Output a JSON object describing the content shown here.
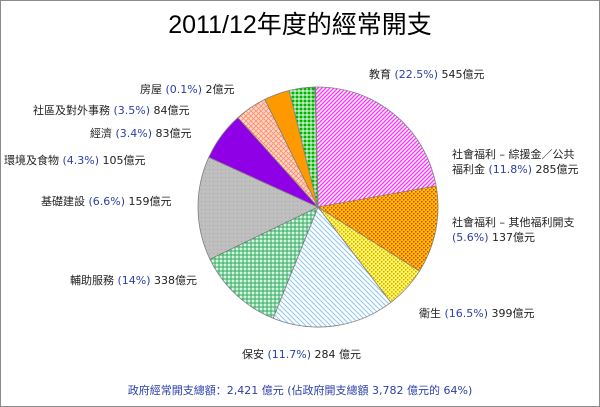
{
  "chart_data": {
    "type": "pie",
    "title": "2011/12年度的經常開支",
    "unit": "億元",
    "slices": [
      {
        "label": "教育",
        "percent": 22.5,
        "value": 545,
        "value_text": "545億元",
        "color": "#ff33ff"
      },
      {
        "label": "社會福利 – 綜援金／公共福利金",
        "percent": 11.8,
        "value": 285,
        "value_text": "285億元",
        "color": "#ffcc00"
      },
      {
        "label": "社會福利 – 其他福利開支",
        "percent": 5.6,
        "value": 137,
        "value_text": "137億元",
        "color": "#ffff66"
      },
      {
        "label": "衛生",
        "percent": 16.5,
        "value": 399,
        "value_text": "399億元",
        "color": "#cce6ff"
      },
      {
        "label": "保安",
        "percent": 11.7,
        "value": 284,
        "value_text": "284 億元",
        "color": "#8fd9a8"
      },
      {
        "label": "輔助服務",
        "percent": 14,
        "value": 338,
        "value_text": "338億元",
        "color": "#bfbfbf"
      },
      {
        "label": "基礎建設",
        "percent": 6.6,
        "value": 159,
        "value_text": "159億元",
        "color": "#8f00e6"
      },
      {
        "label": "環境及食物",
        "percent": 4.3,
        "value": 105,
        "value_text": "105億元",
        "color": "#ffbfa6"
      },
      {
        "label": "經濟",
        "percent": 3.4,
        "value": 83,
        "value_text": "83億元",
        "color": "#ff9900"
      },
      {
        "label": "社區及對外事務",
        "percent": 3.5,
        "value": 84,
        "value_text": "84億元",
        "color": "#00cc00"
      },
      {
        "label": "房屋",
        "percent": 0.1,
        "value": 2,
        "value_text": "2億元",
        "color": "#3333ff"
      }
    ],
    "footer": {
      "prefix": "政府經常開支總額：",
      "total": "2,421 億元",
      "share": "(佔政府開支總額 3,782 億元的 64%)"
    }
  }
}
